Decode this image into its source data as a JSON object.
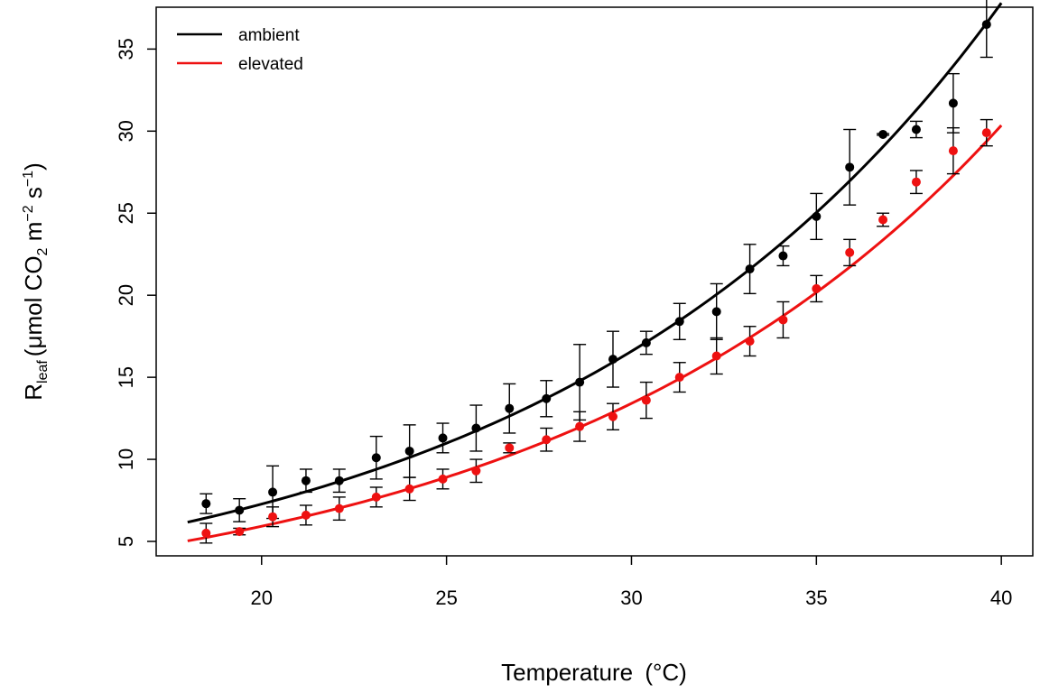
{
  "chart_data": {
    "type": "scatter",
    "xlabel": "Temperature",
    "xlabel_unit": "(°C)",
    "ylabel": {
      "main": "R",
      "sub": "leaf",
      "units_open": "(μmol CO",
      "co2_sub": "2",
      "m_text": " m",
      "m_sup": "−2",
      "s_text": " s",
      "s_sup": "−1",
      "units_close": ")"
    },
    "xlim": [
      17.15,
      40.85
    ],
    "ylim": [
      4.12,
      37.55
    ],
    "xticks": [
      20,
      25,
      30,
      35,
      40
    ],
    "yticks": [
      5,
      10,
      15,
      20,
      25,
      30,
      35
    ],
    "grid": false,
    "legend_position": "top-left",
    "series": [
      {
        "name": "ambient",
        "color": "#000000",
        "x": [
          18.5,
          19.4,
          20.3,
          21.2,
          22.1,
          23.1,
          24.0,
          24.9,
          25.8,
          26.7,
          27.7,
          28.6,
          29.5,
          30.4,
          31.3,
          32.3,
          33.2,
          34.1,
          35.0,
          35.9,
          36.8,
          37.7,
          38.7,
          39.6
        ],
        "y": [
          7.3,
          6.9,
          8.0,
          8.7,
          8.7,
          10.1,
          10.5,
          11.3,
          11.9,
          13.1,
          13.7,
          14.7,
          16.1,
          17.1,
          18.4,
          19.0,
          21.6,
          22.4,
          24.8,
          27.8,
          29.8,
          30.1,
          31.7,
          36.5
        ],
        "err": [
          0.6,
          0.7,
          1.6,
          0.7,
          0.7,
          1.3,
          1.6,
          0.9,
          1.4,
          1.5,
          1.1,
          2.3,
          1.7,
          0.7,
          1.1,
          1.7,
          1.5,
          0.6,
          1.4,
          2.3,
          0.05,
          0.5,
          1.8,
          2.0
        ],
        "fit": {
          "a": 6.17,
          "b": 0.0824,
          "x0": 18
        }
      },
      {
        "name": "elevated",
        "color": "#ee1111",
        "x": [
          18.5,
          19.4,
          20.3,
          21.2,
          22.1,
          23.1,
          24.0,
          24.9,
          25.8,
          26.7,
          27.7,
          28.6,
          29.5,
          30.4,
          31.3,
          32.3,
          33.2,
          34.1,
          35.0,
          35.9,
          36.8,
          37.7,
          38.7,
          39.6
        ],
        "y": [
          5.5,
          5.6,
          6.5,
          6.6,
          7.0,
          7.7,
          8.2,
          8.8,
          9.3,
          10.7,
          11.2,
          12.0,
          12.6,
          13.6,
          15.0,
          16.3,
          17.2,
          18.5,
          20.4,
          22.6,
          24.6,
          26.9,
          28.8,
          29.9
        ],
        "err": [
          0.6,
          0.2,
          0.6,
          0.6,
          0.7,
          0.6,
          0.7,
          0.6,
          0.7,
          0.3,
          0.7,
          0.9,
          0.8,
          1.1,
          0.9,
          1.1,
          0.9,
          1.1,
          0.8,
          0.8,
          0.4,
          0.7,
          1.4,
          0.8
        ],
        "fit": {
          "a": 5.03,
          "b": 0.0817,
          "x0": 18
        }
      }
    ]
  }
}
